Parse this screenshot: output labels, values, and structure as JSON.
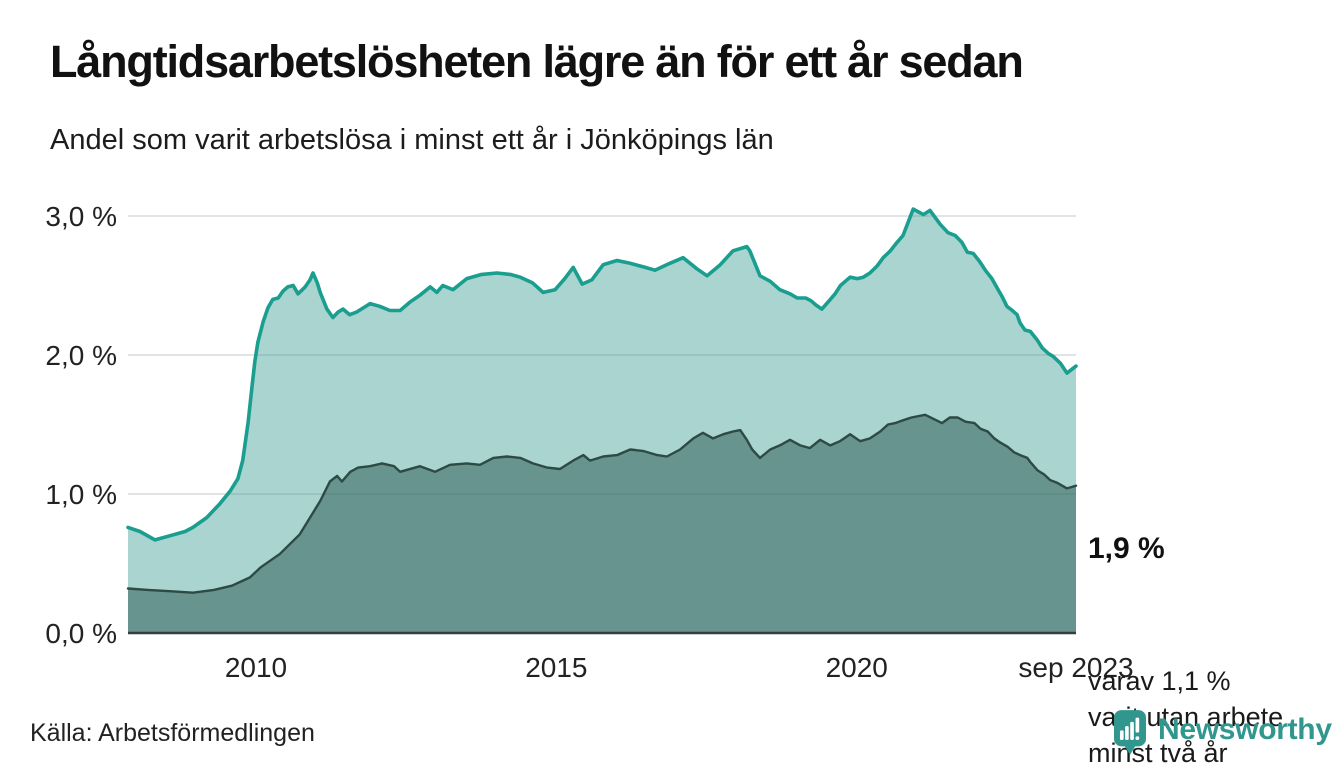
{
  "header": {
    "title": "Långtidsarbetslösheten lägre än för ett år sedan",
    "subtitle": "Andel som varit arbetslösa i minst ett år i Jönköpings län"
  },
  "annotations": {
    "latest_total": "1,9 %",
    "secondary_lines": [
      "varav 1,1 %",
      "varit utan arbete",
      "minst två år"
    ]
  },
  "footer": {
    "source": "Källa: Arbetsförmedlingen",
    "brand": "Newsworthy"
  },
  "colors": {
    "line_total": "#1a9e8f",
    "fill_total": "rgba(64,160,148,0.45)",
    "line_two_years": "#2d4a45",
    "fill_two_years": "rgba(45,90,85,0.52)",
    "gridline": "#e1e4e6",
    "baseline": "#3c3c3c",
    "axis_text": "#222222",
    "brand_teal": "#31978e"
  },
  "chart_data": {
    "type": "area",
    "title": "Långtidsarbetslösheten lägre än för ett år sedan",
    "subtitle": "Andel som varit arbetslösa i minst ett år i Jönköpings län",
    "unit": "%",
    "grid": true,
    "legend": "none (annotated directly on chart)",
    "x_axis": {
      "range": [
        2007.87,
        2023.65
      ],
      "ticks": [
        {
          "x": 2010,
          "label": "2010"
        },
        {
          "x": 2015,
          "label": "2015"
        },
        {
          "x": 2020,
          "label": "2020"
        },
        {
          "x": 2023.65,
          "label": "sep 2023"
        }
      ]
    },
    "y_axis": {
      "range": [
        0,
        3.2
      ],
      "ticks": [
        {
          "value": 0,
          "label": "0,0 %"
        },
        {
          "value": 1,
          "label": "1,0 %"
        },
        {
          "value": 2,
          "label": "2,0 %"
        },
        {
          "value": 3,
          "label": "3,0 %"
        }
      ]
    },
    "series": [
      {
        "id": "arbetslosa_minst_ett_ar",
        "label_on_chart": "1,9 %",
        "last_value": 1.92,
        "points": [
          [
            2007.87,
            0.76
          ],
          [
            2008.07,
            0.73
          ],
          [
            2008.32,
            0.67
          ],
          [
            2008.57,
            0.7
          ],
          [
            2008.82,
            0.73
          ],
          [
            2008.95,
            0.76
          ],
          [
            2009.18,
            0.83
          ],
          [
            2009.4,
            0.93
          ],
          [
            2009.57,
            1.02
          ],
          [
            2009.7,
            1.11
          ],
          [
            2009.78,
            1.24
          ],
          [
            2009.87,
            1.52
          ],
          [
            2009.93,
            1.76
          ],
          [
            2009.98,
            1.95
          ],
          [
            2010.03,
            2.09
          ],
          [
            2010.12,
            2.24
          ],
          [
            2010.2,
            2.34
          ],
          [
            2010.28,
            2.4
          ],
          [
            2010.37,
            2.41
          ],
          [
            2010.45,
            2.46
          ],
          [
            2010.53,
            2.49
          ],
          [
            2010.62,
            2.5
          ],
          [
            2010.7,
            2.44
          ],
          [
            2010.82,
            2.49
          ],
          [
            2010.9,
            2.54
          ],
          [
            2010.95,
            2.59
          ],
          [
            2011.02,
            2.52
          ],
          [
            2011.07,
            2.45
          ],
          [
            2011.18,
            2.33
          ],
          [
            2011.28,
            2.27
          ],
          [
            2011.37,
            2.31
          ],
          [
            2011.45,
            2.33
          ],
          [
            2011.56,
            2.29
          ],
          [
            2011.68,
            2.31
          ],
          [
            2011.9,
            2.37
          ],
          [
            2012.06,
            2.35
          ],
          [
            2012.23,
            2.32
          ],
          [
            2012.4,
            2.32
          ],
          [
            2012.56,
            2.38
          ],
          [
            2012.73,
            2.43
          ],
          [
            2012.9,
            2.49
          ],
          [
            2013.01,
            2.45
          ],
          [
            2013.11,
            2.5
          ],
          [
            2013.28,
            2.47
          ],
          [
            2013.51,
            2.55
          ],
          [
            2013.76,
            2.58
          ],
          [
            2014.01,
            2.59
          ],
          [
            2014.23,
            2.58
          ],
          [
            2014.4,
            2.56
          ],
          [
            2014.6,
            2.52
          ],
          [
            2014.78,
            2.45
          ],
          [
            2014.98,
            2.47
          ],
          [
            2015.14,
            2.55
          ],
          [
            2015.28,
            2.63
          ],
          [
            2015.43,
            2.51
          ],
          [
            2015.59,
            2.54
          ],
          [
            2015.78,
            2.65
          ],
          [
            2016.01,
            2.68
          ],
          [
            2016.23,
            2.66
          ],
          [
            2016.48,
            2.63
          ],
          [
            2016.64,
            2.61
          ],
          [
            2016.89,
            2.66
          ],
          [
            2017.11,
            2.7
          ],
          [
            2017.34,
            2.62
          ],
          [
            2017.51,
            2.57
          ],
          [
            2017.73,
            2.65
          ],
          [
            2017.94,
            2.75
          ],
          [
            2018.17,
            2.78
          ],
          [
            2018.22,
            2.75
          ],
          [
            2018.39,
            2.57
          ],
          [
            2018.56,
            2.53
          ],
          [
            2018.72,
            2.47
          ],
          [
            2018.89,
            2.44
          ],
          [
            2019.01,
            2.41
          ],
          [
            2019.15,
            2.41
          ],
          [
            2019.24,
            2.39
          ],
          [
            2019.32,
            2.36
          ],
          [
            2019.42,
            2.33
          ],
          [
            2019.56,
            2.4
          ],
          [
            2019.64,
            2.44
          ],
          [
            2019.73,
            2.5
          ],
          [
            2019.81,
            2.53
          ],
          [
            2019.89,
            2.56
          ],
          [
            2020.01,
            2.55
          ],
          [
            2020.11,
            2.56
          ],
          [
            2020.22,
            2.59
          ],
          [
            2020.34,
            2.64
          ],
          [
            2020.44,
            2.7
          ],
          [
            2020.56,
            2.75
          ],
          [
            2020.67,
            2.81
          ],
          [
            2020.77,
            2.86
          ],
          [
            2020.94,
            3.05
          ],
          [
            2021.11,
            3.01
          ],
          [
            2021.22,
            3.04
          ],
          [
            2021.39,
            2.94
          ],
          [
            2021.52,
            2.88
          ],
          [
            2021.64,
            2.86
          ],
          [
            2021.75,
            2.81
          ],
          [
            2021.84,
            2.74
          ],
          [
            2021.94,
            2.73
          ],
          [
            2022.05,
            2.67
          ],
          [
            2022.14,
            2.61
          ],
          [
            2022.25,
            2.55
          ],
          [
            2022.34,
            2.48
          ],
          [
            2022.42,
            2.42
          ],
          [
            2022.5,
            2.35
          ],
          [
            2022.59,
            2.32
          ],
          [
            2022.67,
            2.29
          ],
          [
            2022.72,
            2.23
          ],
          [
            2022.8,
            2.18
          ],
          [
            2022.89,
            2.17
          ],
          [
            2023.0,
            2.11
          ],
          [
            2023.09,
            2.05
          ],
          [
            2023.19,
            2.01
          ],
          [
            2023.27,
            1.99
          ],
          [
            2023.39,
            1.94
          ],
          [
            2023.5,
            1.87
          ],
          [
            2023.65,
            1.92
          ]
        ]
      },
      {
        "id": "arbetslosa_minst_tva_ar",
        "label_on_chart": "varav 1,1 % varit utan arbete minst två år",
        "last_value": 1.06,
        "points": [
          [
            2007.87,
            0.32
          ],
          [
            2008.2,
            0.31
          ],
          [
            2008.6,
            0.3
          ],
          [
            2008.95,
            0.29
          ],
          [
            2009.3,
            0.31
          ],
          [
            2009.6,
            0.34
          ],
          [
            2009.9,
            0.4
          ],
          [
            2010.07,
            0.47
          ],
          [
            2010.4,
            0.57
          ],
          [
            2010.73,
            0.71
          ],
          [
            2010.9,
            0.83
          ],
          [
            2011.07,
            0.95
          ],
          [
            2011.23,
            1.09
          ],
          [
            2011.35,
            1.13
          ],
          [
            2011.43,
            1.09
          ],
          [
            2011.57,
            1.16
          ],
          [
            2011.7,
            1.19
          ],
          [
            2011.9,
            1.2
          ],
          [
            2012.1,
            1.22
          ],
          [
            2012.3,
            1.2
          ],
          [
            2012.4,
            1.16
          ],
          [
            2012.73,
            1.2
          ],
          [
            2012.98,
            1.16
          ],
          [
            2013.23,
            1.21
          ],
          [
            2013.51,
            1.22
          ],
          [
            2013.73,
            1.21
          ],
          [
            2013.95,
            1.26
          ],
          [
            2014.18,
            1.27
          ],
          [
            2014.4,
            1.26
          ],
          [
            2014.61,
            1.22
          ],
          [
            2014.85,
            1.19
          ],
          [
            2015.06,
            1.18
          ],
          [
            2015.28,
            1.24
          ],
          [
            2015.45,
            1.28
          ],
          [
            2015.56,
            1.24
          ],
          [
            2015.78,
            1.27
          ],
          [
            2016.01,
            1.28
          ],
          [
            2016.23,
            1.32
          ],
          [
            2016.44,
            1.31
          ],
          [
            2016.68,
            1.28
          ],
          [
            2016.84,
            1.27
          ],
          [
            2017.06,
            1.32
          ],
          [
            2017.28,
            1.4
          ],
          [
            2017.44,
            1.44
          ],
          [
            2017.61,
            1.4
          ],
          [
            2017.78,
            1.43
          ],
          [
            2017.94,
            1.45
          ],
          [
            2018.06,
            1.46
          ],
          [
            2018.17,
            1.39
          ],
          [
            2018.26,
            1.32
          ],
          [
            2018.39,
            1.26
          ],
          [
            2018.56,
            1.32
          ],
          [
            2018.72,
            1.35
          ],
          [
            2018.89,
            1.39
          ],
          [
            2019.06,
            1.35
          ],
          [
            2019.22,
            1.33
          ],
          [
            2019.39,
            1.39
          ],
          [
            2019.56,
            1.35
          ],
          [
            2019.72,
            1.38
          ],
          [
            2019.89,
            1.43
          ],
          [
            2020.06,
            1.38
          ],
          [
            2020.22,
            1.4
          ],
          [
            2020.39,
            1.45
          ],
          [
            2020.52,
            1.5
          ],
          [
            2020.64,
            1.51
          ],
          [
            2020.77,
            1.53
          ],
          [
            2020.91,
            1.55
          ],
          [
            2021.14,
            1.57
          ],
          [
            2021.28,
            1.54
          ],
          [
            2021.42,
            1.51
          ],
          [
            2021.55,
            1.55
          ],
          [
            2021.68,
            1.55
          ],
          [
            2021.81,
            1.52
          ],
          [
            2021.96,
            1.51
          ],
          [
            2022.06,
            1.47
          ],
          [
            2022.18,
            1.45
          ],
          [
            2022.29,
            1.4
          ],
          [
            2022.39,
            1.37
          ],
          [
            2022.51,
            1.34
          ],
          [
            2022.62,
            1.3
          ],
          [
            2022.72,
            1.28
          ],
          [
            2022.84,
            1.26
          ],
          [
            2022.89,
            1.23
          ],
          [
            2023.01,
            1.17
          ],
          [
            2023.12,
            1.14
          ],
          [
            2023.22,
            1.1
          ],
          [
            2023.34,
            1.08
          ],
          [
            2023.5,
            1.04
          ],
          [
            2023.58,
            1.05
          ],
          [
            2023.65,
            1.06
          ]
        ]
      }
    ]
  }
}
